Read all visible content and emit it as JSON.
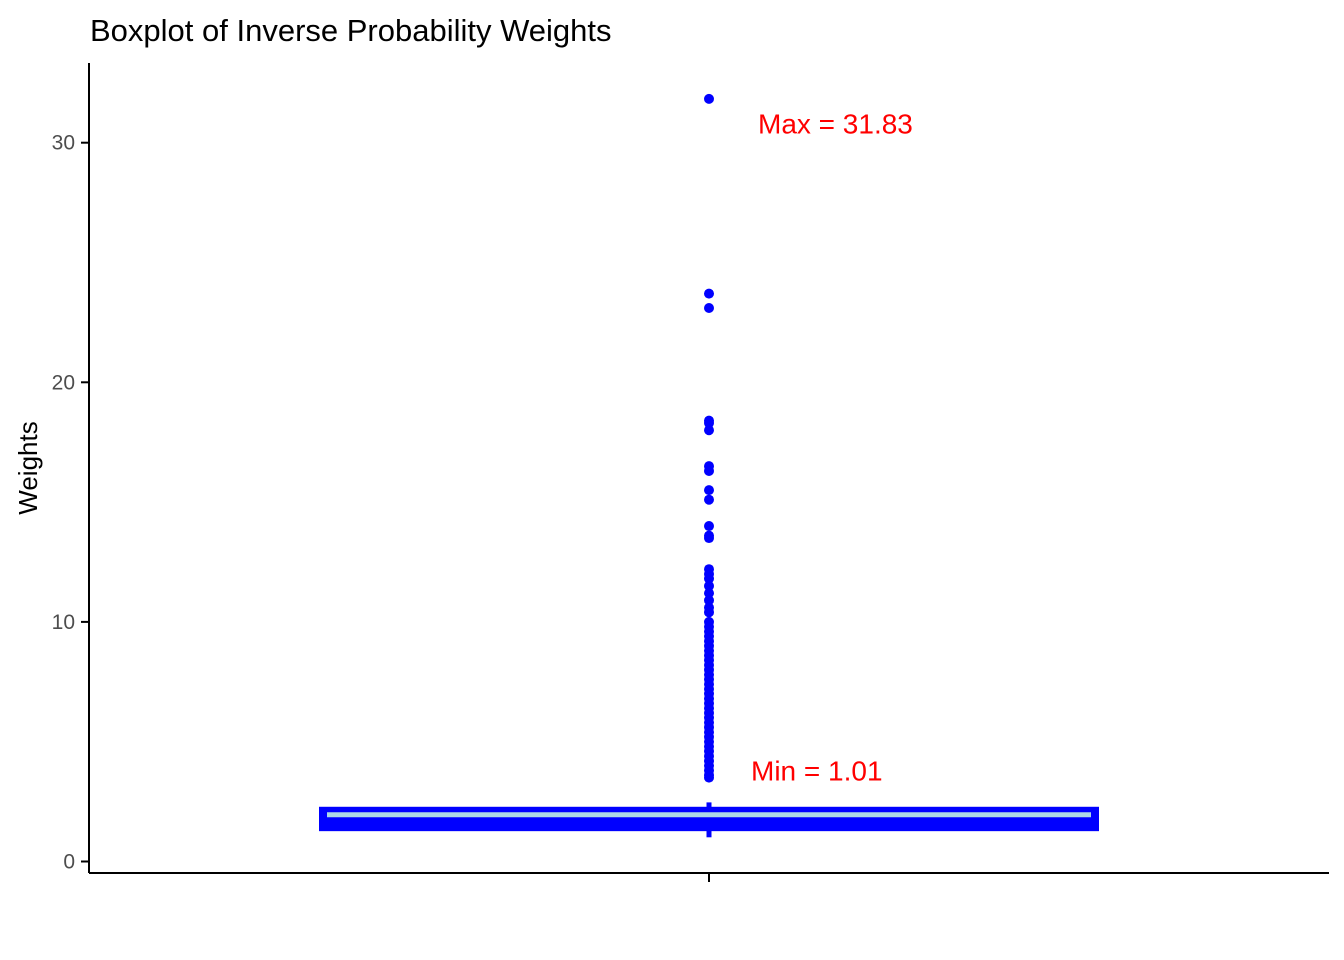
{
  "chart_data": {
    "type": "box",
    "title": "Boxplot of Inverse Probability Weights",
    "xlabel": "",
    "ylabel": "Weights",
    "ylim": [
      -0.5,
      33.1
    ],
    "yticks": [
      0,
      10,
      20,
      30
    ],
    "grid": false,
    "colors": {
      "box": "#0000ff",
      "median": "#add8e6",
      "annotation": "#ff0000",
      "axis": "#000000"
    },
    "box": {
      "q1": 1.35,
      "median": 1.95,
      "q3": 2.2,
      "whisker_low": 1.01,
      "whisker_high": 2.3
    },
    "outliers": [
      31.83,
      23.7,
      23.1,
      18.4,
      18.3,
      18.0,
      16.5,
      16.3,
      15.5,
      15.1,
      14.0,
      13.6,
      13.5,
      12.2,
      12.0,
      11.8,
      11.5,
      11.2,
      10.9,
      10.6,
      10.4,
      10.0,
      9.8,
      9.6,
      9.4,
      9.2,
      9.0,
      8.8,
      8.6,
      8.4,
      8.2,
      8.0,
      7.8,
      7.6,
      7.4,
      7.2,
      7.0,
      6.8,
      6.6,
      6.4,
      6.2,
      6.0,
      5.8,
      5.6,
      5.4,
      5.2,
      5.0,
      4.8,
      4.6,
      4.4,
      4.2,
      4.0,
      3.8,
      3.6,
      3.5
    ],
    "annotations": [
      {
        "text": "Max = 31.83",
        "y": 30.8
      },
      {
        "text": "Min = 1.01",
        "y": 3.8
      }
    ]
  }
}
